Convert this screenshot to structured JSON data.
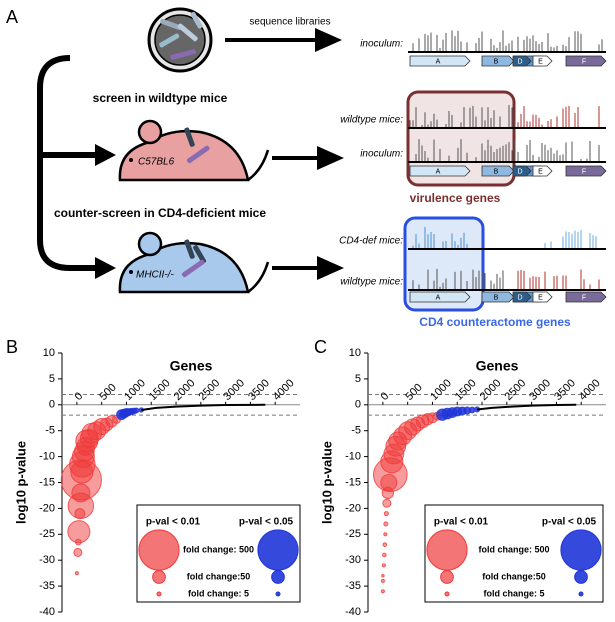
{
  "diagram": {
    "panel_label": "A",
    "arrow_label": "sequence libraries",
    "step1": "screen in wildtype mice",
    "step2": "counter-screen in CD4-deficient mice",
    "mouse1": "C57BL6",
    "mouse2": "MHCII-/-",
    "genes": [
      "A",
      "B",
      "C",
      "D",
      "E",
      "F"
    ],
    "tracks": [
      {
        "label": "inoculum:"
      },
      {
        "label": "wildtype mice:"
      },
      {
        "label": "inoculum:"
      },
      {
        "label": "CD4-def mice:"
      },
      {
        "label": "wildtype mice:"
      }
    ],
    "box1": "virulence genes",
    "box2": "CD4 counteractome genes"
  },
  "chart_data": [
    {
      "type": "bubble",
      "panel_label": "B",
      "title": "Genes",
      "ylabel": "log10 p-value",
      "xlim": [
        -300,
        4500
      ],
      "ylim": [
        -40,
        10
      ],
      "xticks": [
        0,
        500,
        1000,
        1500,
        2000,
        2500,
        3000,
        3500,
        4000
      ],
      "yticks": [
        -40,
        -35,
        -30,
        -25,
        -20,
        -15,
        -10,
        -5,
        0,
        5,
        10
      ],
      "threshold_lines": [
        2,
        -2
      ],
      "series": [
        {
          "name": "p-val < 0.01",
          "color": "#f03a3a",
          "x": [
            0,
            20,
            30,
            40,
            60,
            80,
            80,
            90,
            100,
            110,
            130,
            150,
            180,
            200,
            250,
            300,
            400,
            500,
            600,
            700,
            800
          ],
          "values": [
            -32.5,
            -28.5,
            -26.5,
            -24.5,
            -21,
            -19.5,
            -17,
            -14.5,
            -13,
            -11.5,
            -10,
            -9,
            -8,
            -7,
            -6.5,
            -5.5,
            -5,
            -4.2,
            -3.8,
            -3.2,
            -2.8
          ],
          "sizes": [
            3,
            20,
            10,
            150,
            30,
            200,
            100,
            500,
            150,
            200,
            150,
            120,
            100,
            150,
            100,
            120,
            100,
            80,
            50,
            40,
            20
          ]
        },
        {
          "name": "p-val < 0.05",
          "color": "#1f35d8",
          "x": [
            900,
            950,
            1000,
            1050,
            1100,
            1150,
            1200,
            1300
          ],
          "values": [
            -1.9,
            -1.7,
            -1.5,
            -1.4,
            -1.3,
            -1.2,
            -1.1,
            -1.0
          ],
          "sizes": [
            30,
            25,
            20,
            15,
            12,
            10,
            8,
            6
          ]
        },
        {
          "type": "line",
          "color": "#000000",
          "x": [
            1300,
            1600,
            2000,
            2500,
            3000,
            3800
          ],
          "values": [
            -1.0,
            -0.6,
            -0.35,
            -0.15,
            -0.05,
            0
          ]
        }
      ],
      "legend": [
        {
          "label": "fold change: 500",
          "size": 500
        },
        {
          "label": "fold change:50",
          "size": 50
        },
        {
          "label": "fold change: 5",
          "size": 5
        }
      ]
    },
    {
      "type": "bubble",
      "panel_label": "C",
      "title": "Genes",
      "ylabel": "log10 p-value",
      "xlim": [
        -300,
        4500
      ],
      "ylim": [
        -40,
        10
      ],
      "xticks": [
        0,
        500,
        1000,
        1500,
        2000,
        2500,
        3000,
        3500,
        4000
      ],
      "yticks": [
        -40,
        -35,
        -30,
        -25,
        -20,
        -15,
        -10,
        -5,
        0,
        5,
        10
      ],
      "threshold_lines": [
        2,
        -2
      ],
      "series": [
        {
          "name": "p-val < 0.01",
          "color": "#f03a3a",
          "x": [
            0,
            0,
            0,
            20,
            30,
            40,
            50,
            60,
            70,
            80,
            100,
            120,
            150,
            180,
            220,
            260,
            300,
            400,
            500,
            600,
            700,
            800,
            900,
            1000,
            1100
          ],
          "values": [
            -36,
            -34,
            -33,
            -31,
            -29,
            -27,
            -25,
            -23,
            -21,
            -19,
            -17,
            -15,
            -13.5,
            -11,
            -9.5,
            -8,
            -7,
            -6,
            -5,
            -4.3,
            -3.7,
            -3.2,
            -2.8,
            -2.5,
            -2.2
          ],
          "sizes": [
            3,
            3,
            2,
            3,
            4,
            4,
            3,
            5,
            5,
            20,
            40,
            80,
            350,
            150,
            120,
            120,
            100,
            100,
            100,
            80,
            60,
            50,
            40,
            30,
            20
          ]
        },
        {
          "name": "p-val < 0.05",
          "color": "#1f35d8",
          "x": [
            1200,
            1300,
            1400,
            1500,
            1600,
            1700,
            1800,
            1900
          ],
          "values": [
            -1.9,
            -1.7,
            -1.5,
            -1.3,
            -1.2,
            -1.1,
            -1.0,
            -0.9
          ],
          "sizes": [
            40,
            35,
            30,
            25,
            20,
            15,
            10,
            8
          ]
        },
        {
          "type": "line",
          "color": "#000000",
          "x": [
            1900,
            2200,
            2600,
            3000,
            3500,
            3900
          ],
          "values": [
            -0.9,
            -0.6,
            -0.35,
            -0.15,
            -0.05,
            0
          ]
        }
      ],
      "legend": [
        {
          "label": "fold change: 500",
          "size": 500
        },
        {
          "label": "fold change:50",
          "size": 50
        },
        {
          "label": "fold change: 5",
          "size": 5
        }
      ]
    }
  ]
}
